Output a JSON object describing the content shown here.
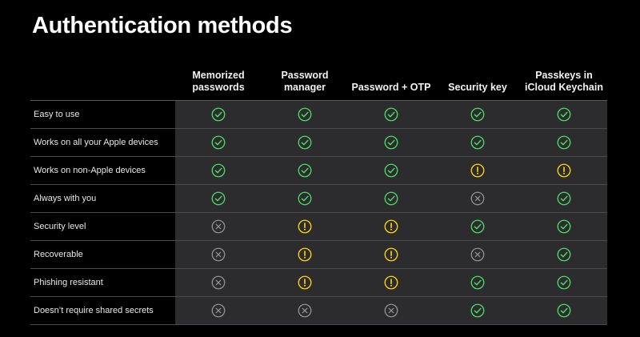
{
  "title": "Authentication methods",
  "columns": [
    {
      "line1": "Memorized",
      "line2": "passwords"
    },
    {
      "line1": "",
      "line2": "Password manager"
    },
    {
      "line1": "",
      "line2": "Password + OTP"
    },
    {
      "line1": "",
      "line2": "Security key"
    },
    {
      "line1": "Passkeys in",
      "line2": "iCloud Keychain"
    }
  ],
  "rows": [
    {
      "label": "Easy to use",
      "values": [
        "check",
        "check",
        "check",
        "check",
        "check"
      ]
    },
    {
      "label": "Works on all your Apple devices",
      "values": [
        "check",
        "check",
        "check",
        "check",
        "check"
      ]
    },
    {
      "label": "Works on non-Apple devices",
      "values": [
        "check",
        "check",
        "check",
        "warning",
        "warning"
      ]
    },
    {
      "label": "Always with you",
      "values": [
        "check",
        "check",
        "check",
        "cross",
        "check"
      ]
    },
    {
      "label": "Security level",
      "values": [
        "cross",
        "warning",
        "warning",
        "check",
        "check"
      ]
    },
    {
      "label": "Recoverable",
      "values": [
        "cross",
        "warning",
        "warning",
        "cross",
        "check"
      ]
    },
    {
      "label": "Phishing resistant",
      "values": [
        "cross",
        "warning",
        "warning",
        "check",
        "check"
      ]
    },
    {
      "label": "Doesn’t require shared secrets",
      "values": [
        "cross",
        "cross",
        "cross",
        "check",
        "check"
      ]
    }
  ],
  "colors": {
    "check": "#4cd964",
    "warning": "#ffd60a",
    "cross": "#8e8e93",
    "cell_background": "#2c2c2e"
  },
  "icon_names": {
    "check": "checkmark-circle-icon",
    "warning": "exclamation-circle-icon",
    "cross": "x-circle-icon"
  }
}
